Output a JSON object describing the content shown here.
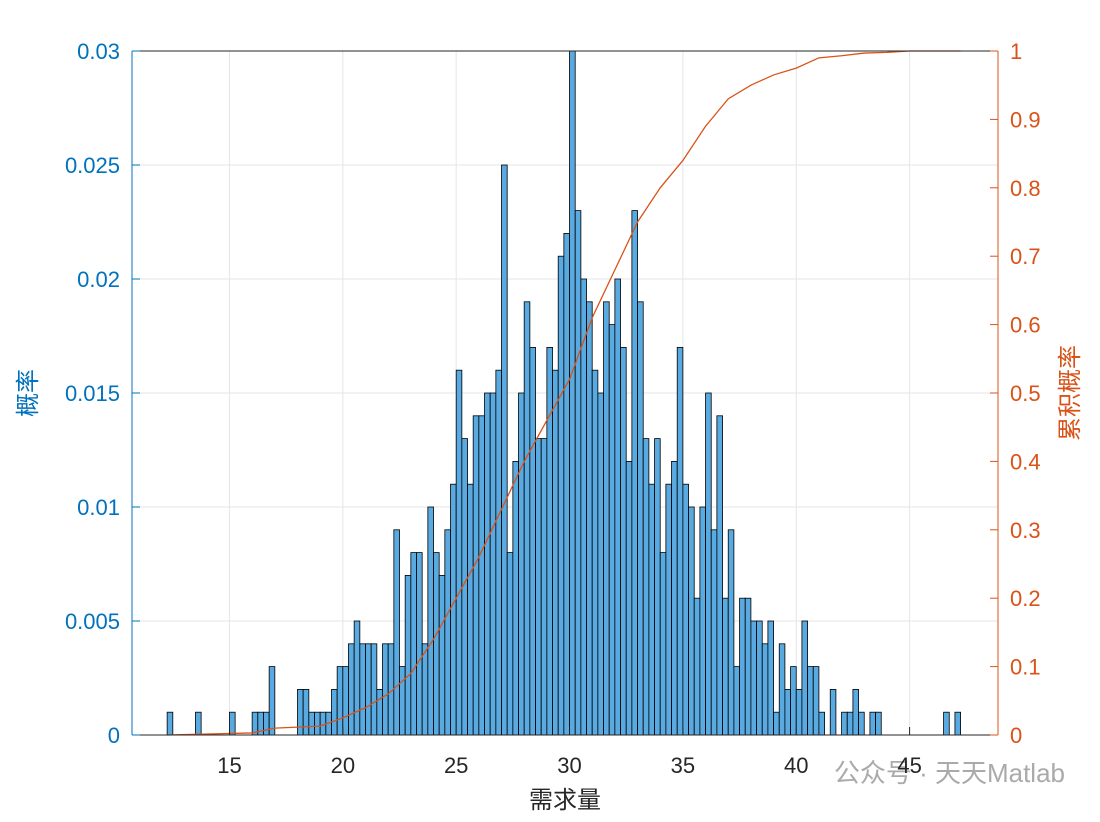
{
  "chart_data": {
    "type": "histogram",
    "xlabel": "需求量",
    "ylabel": "概率",
    "y2label": "累积概率",
    "annotation": "公众号 · 天天Matlab",
    "color": "#5aaae2",
    "edgecolor": "#000000",
    "ycolor": "#0072bd",
    "y2color": "#d95319",
    "grid": true,
    "xlim": [
      10.7,
      48.9
    ],
    "xticks": [
      15,
      20,
      25,
      30,
      35,
      40,
      45
    ],
    "ylim": [
      0,
      0.03
    ],
    "yticks": [
      0,
      0.005,
      0.01,
      0.015,
      0.02,
      0.025,
      0.03
    ],
    "y2lim": [
      0,
      1
    ],
    "y2ticks": [
      0,
      0.1,
      0.2,
      0.3,
      0.4,
      0.5,
      0.6,
      0.7,
      0.8,
      0.9,
      1
    ],
    "bins": [
      12.25,
      12.5,
      12.75,
      13,
      13.25,
      13.5,
      13.75,
      14,
      14.25,
      14.5,
      14.75,
      15,
      15.25,
      15.5,
      15.75,
      16,
      16.25,
      16.5,
      16.75,
      17,
      17.25,
      17.5,
      17.75,
      18,
      18.25,
      18.5,
      18.75,
      19,
      19.25,
      19.5,
      19.75,
      20,
      20.25,
      20.5,
      20.75,
      21,
      21.25,
      21.5,
      21.75,
      22,
      22.25,
      22.5,
      22.75,
      23,
      23.25,
      23.5,
      23.75,
      24,
      24.25,
      24.5,
      24.75,
      25,
      25.25,
      25.5,
      25.75,
      26,
      26.25,
      26.5,
      26.75,
      27,
      27.25,
      27.5,
      27.75,
      28,
      28.25,
      28.5,
      28.75,
      29,
      29.25,
      29.5,
      29.75,
      30,
      30.25,
      30.5,
      30.75,
      31,
      31.25,
      31.5,
      31.75,
      32,
      32.25,
      32.5,
      32.75,
      33,
      33.25,
      33.5,
      33.75,
      34,
      34.25,
      34.5,
      34.75,
      35,
      35.25,
      35.5,
      35.75,
      36,
      36.25,
      36.5,
      36.75,
      37,
      37.25,
      37.5,
      37.75,
      38,
      38.25,
      38.5,
      38.75,
      39,
      39.25,
      39.5,
      39.75,
      40,
      40.25,
      40.5,
      40.75,
      41,
      41.25,
      41.5,
      41.75,
      42,
      42.25,
      42.5,
      42.75,
      43,
      43.25,
      43.5,
      43.75,
      44,
      44.25,
      44.5,
      44.75,
      45,
      45.25,
      45.5,
      45.75,
      46,
      46.25,
      46.5,
      46.75,
      47,
      47.25
    ],
    "values": [
      0.001,
      0,
      0,
      0,
      0,
      0.001,
      0,
      0,
      0,
      0,
      0,
      0.001,
      0,
      0,
      0,
      0.001,
      0.001,
      0.001,
      0.003,
      0,
      0,
      0,
      0,
      0.002,
      0.002,
      0.001,
      0.001,
      0.001,
      0.001,
      0.002,
      0.003,
      0.003,
      0.004,
      0.005,
      0.004,
      0.004,
      0.004,
      0.002,
      0.004,
      0.004,
      0.009,
      0.003,
      0.007,
      0.008,
      0.008,
      0.004,
      0.01,
      0.008,
      0.007,
      0.009,
      0.011,
      0.016,
      0.013,
      0.011,
      0.014,
      0.014,
      0.015,
      0.015,
      0.016,
      0.025,
      0.008,
      0.012,
      0.015,
      0.019,
      0.017,
      0.013,
      0.013,
      0.017,
      0.016,
      0.021,
      0.022,
      0.03,
      0.023,
      0.02,
      0.019,
      0.016,
      0.015,
      0.019,
      0.018,
      0.02,
      0.017,
      0.012,
      0.023,
      0.019,
      0.013,
      0.011,
      0.013,
      0.008,
      0.011,
      0.012,
      0.017,
      0.011,
      0.01,
      0.006,
      0.01,
      0.015,
      0.009,
      0.014,
      0.006,
      0.009,
      0.003,
      0.006,
      0.006,
      0.005,
      0.005,
      0.004,
      0.005,
      0.001,
      0.004,
      0.002,
      0.003,
      0.002,
      0.005,
      0.003,
      0.003,
      0.001,
      0,
      0.002,
      0,
      0.001,
      0.001,
      0.002,
      0.001,
      0,
      0.001,
      0.001,
      0,
      0,
      0,
      0,
      0,
      0,
      0,
      0,
      0,
      0,
      0,
      0.001,
      0,
      0.001
    ],
    "line": {
      "axis": "y2",
      "color": "#d95319",
      "x": [
        12.25,
        16,
        17,
        19,
        20,
        21,
        22,
        23,
        24,
        25,
        26,
        27,
        28,
        29,
        30,
        31,
        32,
        33,
        34,
        35,
        36,
        37,
        38,
        39,
        40,
        41,
        42,
        43,
        44,
        45,
        47.25
      ],
      "values": [
        0,
        0.003,
        0.01,
        0.013,
        0.025,
        0.04,
        0.06,
        0.09,
        0.14,
        0.2,
        0.26,
        0.33,
        0.4,
        0.46,
        0.52,
        0.61,
        0.68,
        0.75,
        0.8,
        0.84,
        0.89,
        0.93,
        0.95,
        0.965,
        0.975,
        0.99,
        0.993,
        0.997,
        0.998,
        1,
        1
      ]
    }
  }
}
